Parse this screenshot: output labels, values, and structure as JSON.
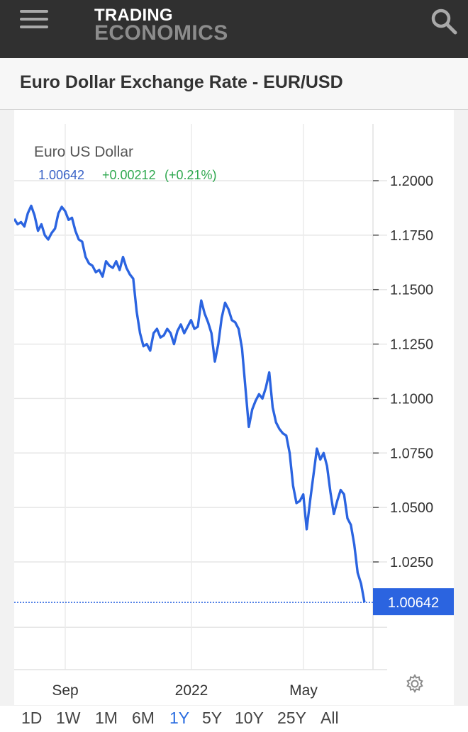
{
  "header": {
    "logo_line1": "TRADING",
    "logo_line2": "ECONOMICS",
    "icons": {
      "menu": "hamburger-menu-icon",
      "search": "search-icon"
    }
  },
  "page": {
    "title": "Euro Dollar Exchange Rate - EUR/USD"
  },
  "chart_panel": {
    "series_title": "Euro US Dollar",
    "last_value": "1.00642",
    "change": "+0.00212",
    "change_pct": "(+0.21%)",
    "price_tag": "1.00642",
    "colors": {
      "line": "#2b64e0",
      "change": "#2fa84f",
      "last_value": "#3a63c7",
      "tag_bg": "#2b64e0",
      "active_range": "#2b6de0"
    }
  },
  "ranges": {
    "items": [
      "1D",
      "1W",
      "1M",
      "6M",
      "1Y",
      "5Y",
      "10Y",
      "25Y",
      "All"
    ],
    "active": "1Y"
  },
  "chart_data": {
    "type": "line",
    "title": "Euro US Dollar",
    "xlabel": "",
    "ylabel": "",
    "x_ticks": [
      "Sep",
      "2022",
      "May"
    ],
    "y_ticks": [
      "1.2000",
      "1.1750",
      "1.1500",
      "1.1250",
      "1.1000",
      "1.0750",
      "1.0500",
      "1.0250"
    ],
    "ylim": [
      0.99,
      1.21
    ],
    "grid": true,
    "last_value": 1.00642,
    "series": [
      {
        "values": [
          1.1825,
          1.18,
          1.181,
          1.179,
          1.185,
          1.1885,
          1.184,
          1.177,
          1.18,
          1.175,
          1.173,
          1.176,
          1.178,
          1.185,
          1.188,
          1.186,
          1.182,
          1.183,
          1.177,
          1.173,
          1.172,
          1.165,
          1.162,
          1.161,
          1.158,
          1.159,
          1.156,
          1.163,
          1.161,
          1.16,
          1.163,
          1.159,
          1.165,
          1.16,
          1.157,
          1.155,
          1.14,
          1.13,
          1.124,
          1.125,
          1.122,
          1.13,
          1.132,
          1.128,
          1.129,
          1.132,
          1.13,
          1.125,
          1.131,
          1.134,
          1.13,
          1.133,
          1.136,
          1.132,
          1.133,
          1.145,
          1.139,
          1.135,
          1.13,
          1.117,
          1.125,
          1.137,
          1.144,
          1.141,
          1.136,
          1.135,
          1.132,
          1.123,
          1.105,
          1.087,
          1.095,
          1.099,
          1.102,
          1.1,
          1.105,
          1.112,
          1.096,
          1.089,
          1.086,
          1.084,
          1.083,
          1.075,
          1.06,
          1.052,
          1.053,
          1.056,
          1.04,
          1.053,
          1.065,
          1.077,
          1.072,
          1.075,
          1.069,
          1.057,
          1.047,
          1.053,
          1.058,
          1.056,
          1.045,
          1.042,
          1.033,
          1.02,
          1.015,
          1.0064
        ]
      }
    ]
  }
}
